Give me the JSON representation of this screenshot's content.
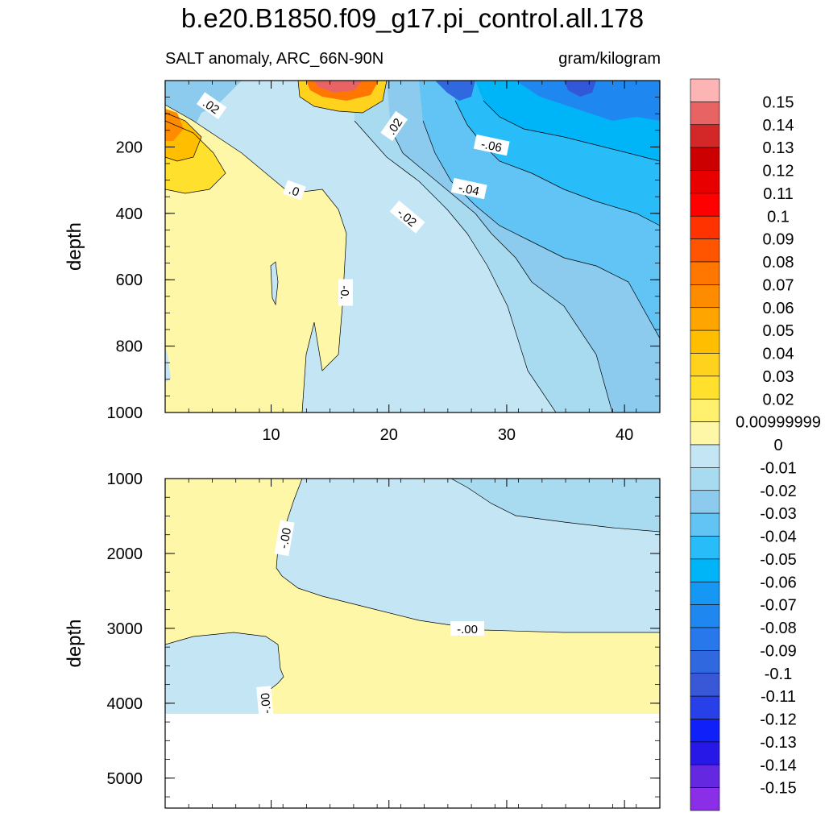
{
  "title": "b.e20.B1850.f09_g17.pi_control.all.178",
  "subtitle_left": "SALT anomaly, ARC_66N-90N",
  "subtitle_right": "gram/kilogram",
  "colors": {
    "positive_fill": "#fff7a8",
    "negative_fill_light": "#c4e6f4",
    "axis": "#000000"
  },
  "chart_data": [
    {
      "type": "heatmap",
      "panel": "upper",
      "ylabel": "depth",
      "xlabel": "",
      "xlim": [
        1,
        43
      ],
      "ylim": [
        1000,
        0
      ],
      "x_ticks": [
        10,
        20,
        30,
        40
      ],
      "y_ticks": [
        200,
        400,
        600,
        800,
        1000
      ],
      "contour_labels": [
        ".02",
        ".02",
        "-.06",
        "-.04",
        ".0",
        "-.02",
        "-0."
      ]
    },
    {
      "type": "heatmap",
      "panel": "lower",
      "ylabel": "depth",
      "xlabel": "",
      "xlim": [
        1,
        43
      ],
      "ylim": [
        5400,
        1000
      ],
      "x_ticks": [
        10,
        20,
        30,
        40
      ],
      "y_ticks": [
        1000,
        2000,
        3000,
        4000,
        5000
      ],
      "contour_labels": [
        "-.00",
        "-.00",
        "-.00"
      ]
    }
  ],
  "colorbar": {
    "labels": [
      "0.15",
      "0.14",
      "0.13",
      "0.12",
      "0.11",
      "0.1",
      "0.09",
      "0.08",
      "0.07",
      "0.06",
      "0.05",
      "0.04",
      "0.03",
      "0.02",
      "0.00999999",
      "0",
      "-0.01",
      "-0.02",
      "-0.03",
      "-0.04",
      "-0.05",
      "-0.06",
      "-0.07",
      "-0.08",
      "-0.09",
      "-0.1",
      "-0.11",
      "-0.12",
      "-0.13",
      "-0.14",
      "-0.15"
    ],
    "colors": [
      "#fcb4b4",
      "#e86464",
      "#d42828",
      "#cc0000",
      "#e80000",
      "#ff0000",
      "#ff3300",
      "#ff5500",
      "#ff7700",
      "#ff8c00",
      "#ffa500",
      "#ffbe00",
      "#ffd21e",
      "#ffe12d",
      "#fff06e",
      "#fff7a8",
      "#c4e6f4",
      "#a8daf0",
      "#8ccaee",
      "#62c4f4",
      "#28bcf8",
      "#00b4f8",
      "#1498f4",
      "#1e88f0",
      "#2878ec",
      "#3068e0",
      "#3858d8",
      "#2840e8",
      "#1020f8",
      "#2818e8",
      "#6428e0",
      "#8a2ee8"
    ]
  }
}
